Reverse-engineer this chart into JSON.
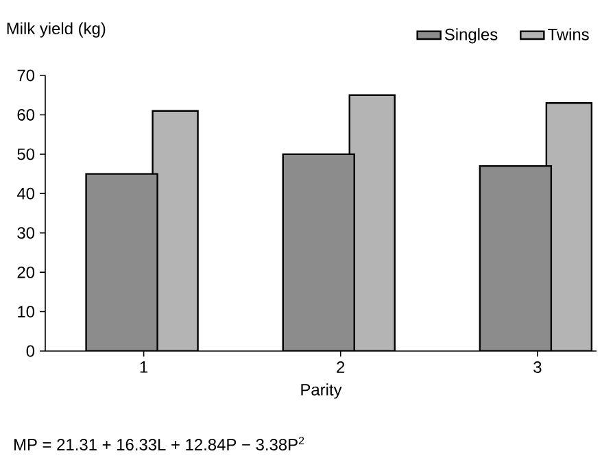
{
  "chart_data": {
    "type": "bar",
    "ylabel": "Milk yield (kg)",
    "xlabel": "Parity",
    "categories": [
      "1",
      "2",
      "3"
    ],
    "series": [
      {
        "name": "Singles",
        "color": "#8c8c8c",
        "values": [
          45,
          50,
          47
        ]
      },
      {
        "name": "Twins",
        "color": "#b4b4b4",
        "values": [
          61,
          65,
          63
        ]
      }
    ],
    "ylim": [
      0,
      70
    ],
    "yticks": [
      0,
      10,
      20,
      30,
      40,
      50,
      60,
      70
    ],
    "legend": "top right",
    "annotations": [
      "MP = 21.31 + 16.33L + 12.84P − 3.38P$^{2}$"
    ]
  }
}
